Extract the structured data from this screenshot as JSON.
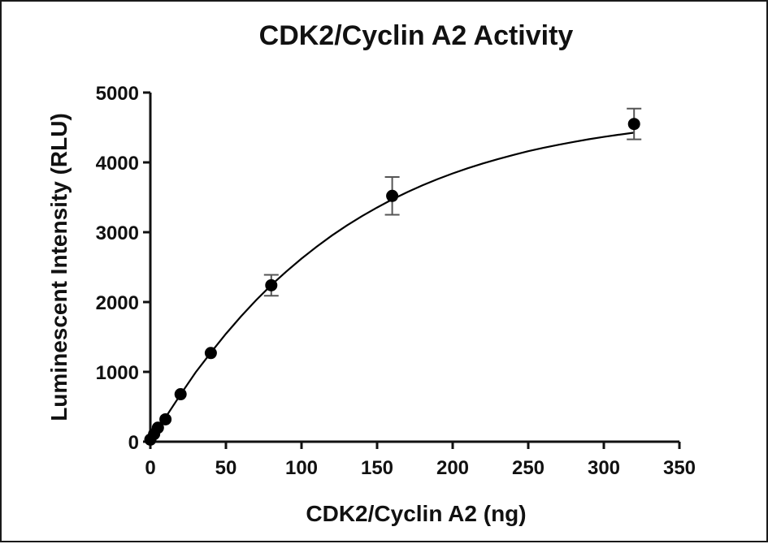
{
  "chart_data": {
    "type": "scatter",
    "title": "CDK2/Cyclin A2 Activity",
    "xlabel": "CDK2/Cyclin A2 (ng)",
    "ylabel": "Luminescent Intensity (RLU)",
    "xlim": [
      0,
      350
    ],
    "ylim": [
      0,
      5000
    ],
    "xticks": [
      0,
      50,
      100,
      150,
      200,
      250,
      300,
      350
    ],
    "yticks": [
      0,
      1000,
      2000,
      3000,
      4000,
      5000
    ],
    "grid": false,
    "legend": "none",
    "series": [
      {
        "x": [
          0,
          2.5,
          5,
          10,
          20,
          40,
          80,
          160,
          320
        ],
        "y": [
          30,
          110,
          200,
          320,
          680,
          1270,
          2240,
          3520,
          4550
        ],
        "error": [
          20,
          20,
          25,
          40,
          40,
          50,
          150,
          270,
          220
        ]
      }
    ],
    "fit_curve": {
      "model": "one-phase association",
      "x": [
        0,
        10,
        20,
        30,
        40,
        50,
        60,
        70,
        80,
        90,
        100,
        110,
        120,
        130,
        140,
        150,
        160,
        170,
        180,
        190,
        200,
        210,
        220,
        230,
        240,
        250,
        260,
        270,
        280,
        290,
        300,
        310,
        320
      ],
      "y": [
        0,
        346,
        677,
        994,
        1276,
        1545,
        1795,
        2028,
        2243,
        2438,
        2622,
        2792,
        2951,
        3096,
        3230,
        3354,
        3470,
        3575,
        3672,
        3760,
        3842,
        3916,
        3985,
        4048,
        4106,
        4160,
        4208,
        4252,
        4293,
        4331,
        4365,
        4397,
        4425
      ]
    },
    "colors": {
      "points": "#000000",
      "error_bars": "#555555",
      "curve": "#000000",
      "axes": "#111111"
    }
  }
}
